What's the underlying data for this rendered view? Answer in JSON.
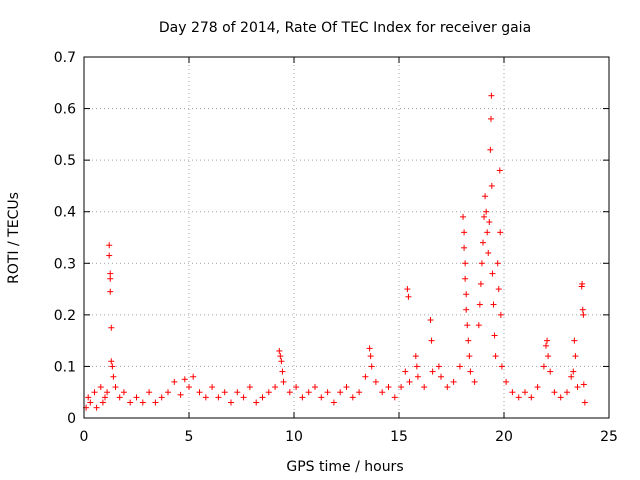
{
  "chart_data": {
    "type": "scatter",
    "title": "Day 278 of 2014, Rate Of TEC Index for receiver gaia",
    "xlabel": "GPS time / hours",
    "ylabel": "ROTI / TECUs",
    "xlim": [
      0,
      25
    ],
    "ylim": [
      0,
      0.7
    ],
    "xticks": [
      0,
      5,
      10,
      15,
      20,
      25
    ],
    "yticks": [
      0,
      0.1,
      0.2,
      0.3,
      0.4,
      0.5,
      0.6,
      0.7
    ],
    "grid": true,
    "marker": "+",
    "series_color": "#ff0000",
    "series": [
      {
        "name": "ROTI",
        "points": [
          [
            0.1,
            0.02
          ],
          [
            0.2,
            0.04
          ],
          [
            0.3,
            0.03
          ],
          [
            0.5,
            0.05
          ],
          [
            0.6,
            0.02
          ],
          [
            0.8,
            0.06
          ],
          [
            0.9,
            0.03
          ],
          [
            1.0,
            0.04
          ],
          [
            1.1,
            0.05
          ],
          [
            1.2,
            0.335
          ],
          [
            1.2,
            0.315
          ],
          [
            1.25,
            0.28
          ],
          [
            1.25,
            0.27
          ],
          [
            1.25,
            0.245
          ],
          [
            1.3,
            0.175
          ],
          [
            1.3,
            0.11
          ],
          [
            1.35,
            0.1
          ],
          [
            1.4,
            0.08
          ],
          [
            1.5,
            0.06
          ],
          [
            1.7,
            0.04
          ],
          [
            1.9,
            0.05
          ],
          [
            2.2,
            0.03
          ],
          [
            2.5,
            0.04
          ],
          [
            2.8,
            0.03
          ],
          [
            3.1,
            0.05
          ],
          [
            3.4,
            0.03
          ],
          [
            3.7,
            0.04
          ],
          [
            4.0,
            0.05
          ],
          [
            4.3,
            0.07
          ],
          [
            4.6,
            0.045
          ],
          [
            4.8,
            0.075
          ],
          [
            5.0,
            0.06
          ],
          [
            5.2,
            0.08
          ],
          [
            5.5,
            0.05
          ],
          [
            5.8,
            0.04
          ],
          [
            6.1,
            0.06
          ],
          [
            6.4,
            0.04
          ],
          [
            6.7,
            0.05
          ],
          [
            7.0,
            0.03
          ],
          [
            7.3,
            0.05
          ],
          [
            7.6,
            0.04
          ],
          [
            7.9,
            0.06
          ],
          [
            8.2,
            0.03
          ],
          [
            8.5,
            0.04
          ],
          [
            8.8,
            0.05
          ],
          [
            9.1,
            0.06
          ],
          [
            9.3,
            0.13
          ],
          [
            9.35,
            0.12
          ],
          [
            9.4,
            0.11
          ],
          [
            9.45,
            0.09
          ],
          [
            9.5,
            0.07
          ],
          [
            9.8,
            0.05
          ],
          [
            10.1,
            0.06
          ],
          [
            10.4,
            0.04
          ],
          [
            10.7,
            0.05
          ],
          [
            11.0,
            0.06
          ],
          [
            11.3,
            0.04
          ],
          [
            11.6,
            0.05
          ],
          [
            11.9,
            0.03
          ],
          [
            12.2,
            0.05
          ],
          [
            12.5,
            0.06
          ],
          [
            12.8,
            0.04
          ],
          [
            13.1,
            0.05
          ],
          [
            13.4,
            0.08
          ],
          [
            13.6,
            0.135
          ],
          [
            13.65,
            0.12
          ],
          [
            13.7,
            0.1
          ],
          [
            13.9,
            0.07
          ],
          [
            14.2,
            0.05
          ],
          [
            14.5,
            0.06
          ],
          [
            14.8,
            0.04
          ],
          [
            15.1,
            0.06
          ],
          [
            15.3,
            0.09
          ],
          [
            15.4,
            0.25
          ],
          [
            15.45,
            0.235
          ],
          [
            15.5,
            0.07
          ],
          [
            15.8,
            0.12
          ],
          [
            15.85,
            0.1
          ],
          [
            15.9,
            0.08
          ],
          [
            16.2,
            0.06
          ],
          [
            16.5,
            0.19
          ],
          [
            16.55,
            0.15
          ],
          [
            16.6,
            0.09
          ],
          [
            16.9,
            0.1
          ],
          [
            17.0,
            0.08
          ],
          [
            17.3,
            0.06
          ],
          [
            17.6,
            0.07
          ],
          [
            17.9,
            0.1
          ],
          [
            18.05,
            0.39
          ],
          [
            18.1,
            0.36
          ],
          [
            18.1,
            0.33
          ],
          [
            18.15,
            0.3
          ],
          [
            18.15,
            0.27
          ],
          [
            18.2,
            0.24
          ],
          [
            18.2,
            0.21
          ],
          [
            18.25,
            0.18
          ],
          [
            18.3,
            0.15
          ],
          [
            18.35,
            0.12
          ],
          [
            18.4,
            0.09
          ],
          [
            18.6,
            0.07
          ],
          [
            18.8,
            0.18
          ],
          [
            18.85,
            0.22
          ],
          [
            18.9,
            0.26
          ],
          [
            18.95,
            0.3
          ],
          [
            19.0,
            0.34
          ],
          [
            19.05,
            0.39
          ],
          [
            19.1,
            0.43
          ],
          [
            19.15,
            0.4
          ],
          [
            19.2,
            0.36
          ],
          [
            19.25,
            0.32
          ],
          [
            19.3,
            0.38
          ],
          [
            19.35,
            0.52
          ],
          [
            19.38,
            0.58
          ],
          [
            19.4,
            0.625
          ],
          [
            19.42,
            0.45
          ],
          [
            19.45,
            0.28
          ],
          [
            19.5,
            0.22
          ],
          [
            19.55,
            0.16
          ],
          [
            19.6,
            0.12
          ],
          [
            19.7,
            0.3
          ],
          [
            19.75,
            0.25
          ],
          [
            19.8,
            0.48
          ],
          [
            19.82,
            0.36
          ],
          [
            19.85,
            0.2
          ],
          [
            19.9,
            0.1
          ],
          [
            20.1,
            0.07
          ],
          [
            20.4,
            0.05
          ],
          [
            20.7,
            0.04
          ],
          [
            21.0,
            0.05
          ],
          [
            21.3,
            0.04
          ],
          [
            21.6,
            0.06
          ],
          [
            21.9,
            0.1
          ],
          [
            22.0,
            0.14
          ],
          [
            22.05,
            0.15
          ],
          [
            22.1,
            0.12
          ],
          [
            22.2,
            0.09
          ],
          [
            22.4,
            0.05
          ],
          [
            22.7,
            0.04
          ],
          [
            23.0,
            0.05
          ],
          [
            23.2,
            0.08
          ],
          [
            23.3,
            0.09
          ],
          [
            23.35,
            0.15
          ],
          [
            23.4,
            0.12
          ],
          [
            23.5,
            0.06
          ],
          [
            23.7,
            0.255
          ],
          [
            23.72,
            0.26
          ],
          [
            23.75,
            0.21
          ],
          [
            23.78,
            0.2
          ],
          [
            23.8,
            0.065
          ],
          [
            23.85,
            0.03
          ]
        ]
      }
    ]
  }
}
